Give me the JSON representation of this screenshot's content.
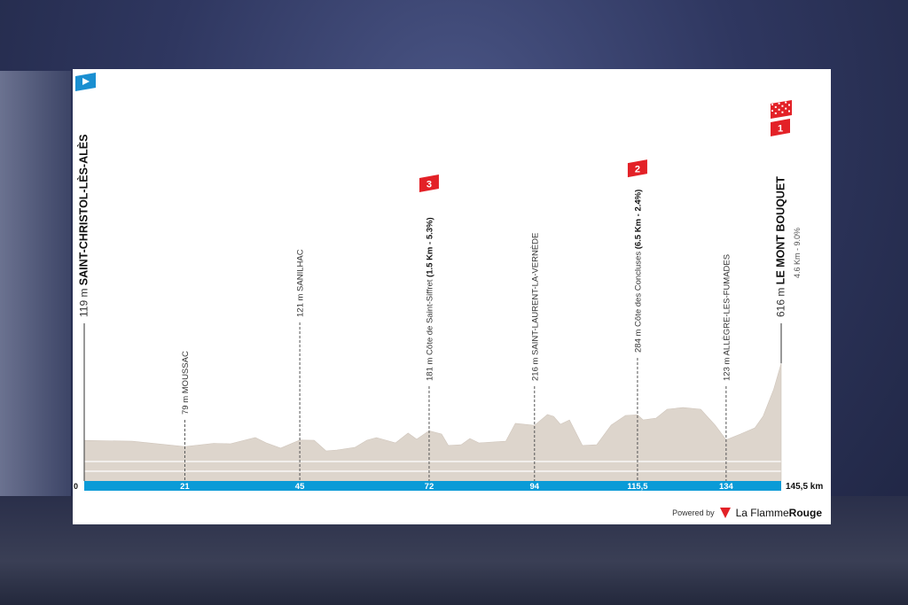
{
  "colors": {
    "profile": "#ddd5cc",
    "bar": "#0a9bd7",
    "climb_flag": "#e32127",
    "start_flag": "#1a8fd1",
    "text": "#222222"
  },
  "chart_data": {
    "type": "area",
    "title": "",
    "x_unit": "km",
    "y_unit": "m",
    "xlim": [
      0,
      145.5
    ],
    "start": {
      "elev_label": "119 m",
      "name": "SAINT-CHRISTOL-LÈS-ALÈS",
      "icon": "start-flag-icon"
    },
    "finish": {
      "elev_label": "616 m",
      "name": "LE MONT BOUQUET",
      "detail": "4.6 Km - 9.0%",
      "category": "1",
      "icon": "finish-checkered-icon"
    },
    "markers": [
      {
        "km": 21,
        "km_label": "21",
        "elev_label": "79 m",
        "name": "MOUSSAC",
        "detail": "",
        "category": ""
      },
      {
        "km": 45,
        "km_label": "45",
        "elev_label": "121 m",
        "name": "SANILHAC",
        "detail": "",
        "category": ""
      },
      {
        "km": 72,
        "km_label": "72",
        "elev_label": "181 m",
        "name": "Côte de Saint-Siffret",
        "detail": "(1.5 Km - 5.3%)",
        "category": "3"
      },
      {
        "km": 94,
        "km_label": "94",
        "elev_label": "216 m",
        "name": "SAINT-LAURENT-LA-VERNÈDE",
        "detail": "",
        "category": ""
      },
      {
        "km": 115.5,
        "km_label": "115,5",
        "elev_label": "284 m",
        "name": "Côte des Concluses",
        "detail": "(6.5 Km - 2.4%)",
        "category": "2"
      },
      {
        "km": 134,
        "km_label": "134",
        "elev_label": "123 m",
        "name": "ALLÈGRE-LES-FUMADES",
        "detail": "",
        "category": ""
      }
    ],
    "x_start_label": "0",
    "x_end_label": "145,5 km",
    "profile": [
      [
        0,
        119
      ],
      [
        10,
        114
      ],
      [
        21,
        79
      ],
      [
        27,
        100
      ],
      [
        30.5,
        97
      ],
      [
        35.7,
        137
      ],
      [
        38,
        103
      ],
      [
        41,
        69
      ],
      [
        45,
        121
      ],
      [
        48,
        120
      ],
      [
        50.5,
        51
      ],
      [
        52.8,
        57
      ],
      [
        56.5,
        74
      ],
      [
        59,
        120
      ],
      [
        61,
        137
      ],
      [
        65,
        103
      ],
      [
        67.6,
        166
      ],
      [
        69.4,
        126
      ],
      [
        72,
        181
      ],
      [
        74.6,
        160
      ],
      [
        76,
        86
      ],
      [
        78.7,
        91
      ],
      [
        80.5,
        131
      ],
      [
        82.4,
        103
      ],
      [
        88,
        114
      ],
      [
        90,
        229
      ],
      [
        94,
        216
      ],
      [
        96.7,
        286
      ],
      [
        98,
        274
      ],
      [
        99.4,
        223
      ],
      [
        101.3,
        251
      ],
      [
        104,
        86
      ],
      [
        107,
        91
      ],
      [
        110,
        217
      ],
      [
        113,
        280
      ],
      [
        115.5,
        284
      ],
      [
        116.7,
        251
      ],
      [
        119.4,
        263
      ],
      [
        121.7,
        320
      ],
      [
        125,
        331
      ],
      [
        128.7,
        320
      ],
      [
        131.7,
        217
      ],
      [
        134,
        123
      ],
      [
        137,
        160
      ],
      [
        140,
        200
      ],
      [
        141.7,
        274
      ],
      [
        143.9,
        446
      ],
      [
        145.5,
        616
      ]
    ]
  },
  "footer": {
    "powered_by": "Powered by",
    "brand_a": "La Flamme",
    "brand_b": "Rouge"
  }
}
